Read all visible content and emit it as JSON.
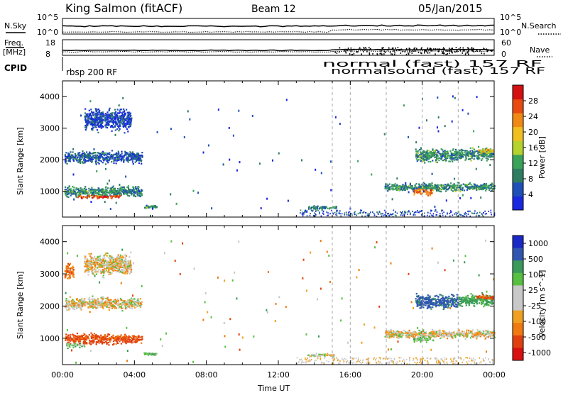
{
  "header": {
    "station": "King Salmon (fitACF)",
    "beam": "Beam 12",
    "date": "05/Jan/2015"
  },
  "summary_panels": {
    "nsky_label": "N.Sky",
    "nsearch_label": "N.Search",
    "nsky_ticks": [
      "10^5",
      "10^0"
    ],
    "nsearch_ticks": [
      "10^5",
      "10^0"
    ],
    "freq_label_1": "Freq.",
    "freq_label_2": "[MHz]",
    "freq_ticks": [
      "18",
      "8"
    ],
    "nave_label": "Nave",
    "nave_ticks": [
      "60",
      "0"
    ],
    "cpid_label": "CPID",
    "cpid_text_first": "rbsp 200 RF",
    "cpid_text_tail_1": "normal (fast) 157 RF",
    "cpid_text_tail_2": "normalsound (fast) 157 RF"
  },
  "colors": {
    "power_scale": [
      "#1a28e0",
      "#1e50b8",
      "#2e7d62",
      "#3aa35a",
      "#b6d22c",
      "#f0c020",
      "#f08a14",
      "#e84a10",
      "#d41010"
    ],
    "velocity_scale": [
      "#1a28c8",
      "#3056b0",
      "#3a9a5a",
      "#58c040",
      "#c8c8c8",
      "#c8c8c8",
      "#f0a020",
      "#f07a10",
      "#e04010",
      "#d81010"
    ],
    "ground_scatter": "#bebebe"
  },
  "chart_data": [
    {
      "type": "heatmap",
      "panel": "power",
      "ylabel": "Slant Range [km]",
      "yticks": [
        "4000",
        "3000",
        "2000",
        "1000"
      ],
      "ylim": [
        180,
        4500
      ],
      "xlim": [
        0,
        24
      ],
      "xticks": [
        "00:00",
        "04:00",
        "08:00",
        "12:00",
        "16:00",
        "20:00",
        "00:00"
      ],
      "colorbar_label": "Power [dB]",
      "colorbar_ticks": [
        "28",
        "24",
        "20",
        "16",
        "12",
        "8",
        "4"
      ],
      "clim": [
        0,
        32
      ],
      "mode_change_times_ut": [
        15.0,
        16.0,
        18.0,
        20.0,
        22.0
      ],
      "echo_regions": [
        {
          "t_start": 0.1,
          "t_end": 4.4,
          "r_center": 1000,
          "r_width": 450,
          "power": 10
        },
        {
          "t_start": 0.8,
          "t_end": 3.2,
          "r_center": 850,
          "r_width": 140,
          "power": 28
        },
        {
          "t_start": 0.1,
          "t_end": 4.4,
          "r_center": 2100,
          "r_width": 500,
          "power": 6
        },
        {
          "t_start": 1.2,
          "t_end": 3.8,
          "r_center": 3300,
          "r_width": 900,
          "power": 4
        },
        {
          "t_start": 4.5,
          "t_end": 5.2,
          "r_center": 530,
          "r_width": 120,
          "power": 10
        },
        {
          "t_start": 13.6,
          "t_end": 15.2,
          "r_center": 500,
          "r_width": 150,
          "power": 8
        },
        {
          "t_start": 17.9,
          "t_end": 24.0,
          "r_center": 1150,
          "r_width": 350,
          "power": 10
        },
        {
          "t_start": 19.5,
          "t_end": 20.6,
          "r_center": 1000,
          "r_width": 260,
          "power": 24
        },
        {
          "t_start": 19.6,
          "t_end": 22.0,
          "r_center": 2150,
          "r_width": 600,
          "power": 10
        },
        {
          "t_start": 22.0,
          "t_end": 23.9,
          "r_center": 2200,
          "r_width": 500,
          "power": 10
        },
        {
          "t_start": 23.0,
          "t_end": 23.9,
          "r_center": 2300,
          "r_width": 200,
          "power": 20
        }
      ]
    },
    {
      "type": "heatmap",
      "panel": "velocity",
      "ylabel": "Slant Range [km]",
      "yticks": [
        "4000",
        "3000",
        "2000",
        "1000"
      ],
      "ylim": [
        180,
        4500
      ],
      "xlim": [
        0,
        24
      ],
      "xticks": [
        "00:00",
        "04:00",
        "08:00",
        "12:00",
        "16:00",
        "20:00",
        "00:00"
      ],
      "xlabel": "Time UT",
      "colorbar_label": "Velocity [m s^-1]",
      "colorbar_ticks": [
        "1000",
        "500",
        "100",
        "25",
        "-25",
        "-100",
        "-500",
        "-1000"
      ],
      "mode_change_times_ut": [
        15.0,
        16.0,
        18.0,
        20.0,
        22.0
      ],
      "echo_regions": [
        {
          "t_start": 0.1,
          "t_end": 4.4,
          "r_center": 1000,
          "r_width": 450,
          "velocity": -300
        },
        {
          "t_start": 0.2,
          "t_end": 1.2,
          "r_center": 800,
          "r_width": 200,
          "velocity": 150
        },
        {
          "t_start": 0.1,
          "t_end": 4.4,
          "r_center": 2100,
          "r_width": 500,
          "velocity": 0
        },
        {
          "t_start": 0.1,
          "t_end": 0.6,
          "r_center": 3100,
          "r_width": 700,
          "velocity": -200
        },
        {
          "t_start": 1.2,
          "t_end": 3.8,
          "r_center": 3300,
          "r_width": 900,
          "velocity": 0
        },
        {
          "t_start": 4.5,
          "t_end": 5.2,
          "r_center": 530,
          "r_width": 120,
          "velocity": 150
        },
        {
          "t_start": 13.6,
          "t_end": 15.2,
          "r_center": 500,
          "r_width": 150,
          "velocity": 50
        },
        {
          "t_start": 17.9,
          "t_end": 24.0,
          "r_center": 1150,
          "r_width": 350,
          "velocity": 0
        },
        {
          "t_start": 19.5,
          "t_end": 20.6,
          "r_center": 1000,
          "r_width": 260,
          "velocity": 150
        },
        {
          "t_start": 19.6,
          "t_end": 22.0,
          "r_center": 2150,
          "r_width": 600,
          "velocity": 600
        },
        {
          "t_start": 22.0,
          "t_end": 23.9,
          "r_center": 2200,
          "r_width": 500,
          "velocity": 300
        },
        {
          "t_start": 23.0,
          "t_end": 23.9,
          "r_center": 2300,
          "r_width": 200,
          "velocity": -300
        }
      ]
    }
  ]
}
